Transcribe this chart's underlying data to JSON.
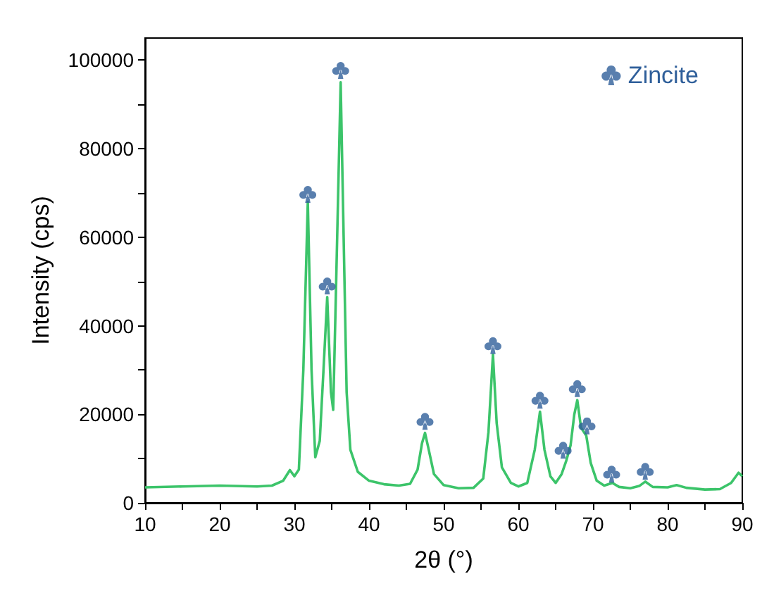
{
  "chart_data": {
    "type": "line",
    "xlabel": "2θ (°)",
    "ylabel": "Intensity (cps)",
    "xlim": [
      10,
      90
    ],
    "ylim": [
      0,
      105000
    ],
    "xticks": [
      10,
      {
        "value": 15,
        "label": null
      },
      20,
      {
        "value": 25,
        "label": null
      },
      30,
      {
        "value": 35,
        "label": null
      },
      40,
      {
        "value": 45,
        "label": null
      },
      50,
      {
        "value": 55,
        "label": null
      },
      60,
      {
        "value": 65,
        "label": null
      },
      70,
      {
        "value": 75,
        "label": null
      },
      80,
      {
        "value": 85,
        "label": null
      },
      90
    ],
    "yticks": [
      0,
      {
        "value": 10000,
        "label": null
      },
      20000,
      {
        "value": 30000,
        "label": null
      },
      40000,
      {
        "value": 50000,
        "label": null
      },
      60000,
      {
        "value": 70000,
        "label": null
      },
      80000,
      {
        "value": 90000,
        "label": null
      },
      100000
    ],
    "legend": "top right",
    "series": [
      {
        "color": "#3cc46a",
        "x": [
          10,
          15,
          20,
          25,
          27,
          28.5,
          29.4,
          30,
          30.6,
          31.2,
          31.8,
          32.3,
          32.8,
          33.4,
          33.9,
          34.4,
          34.9,
          35.2,
          35.6,
          36.2,
          36.6,
          37,
          37.5,
          38.5,
          40,
          42,
          44,
          45.5,
          46.5,
          47.1,
          47.5,
          48,
          48.7,
          50,
          52,
          54,
          55.3,
          56,
          56.6,
          57.1,
          57.8,
          59,
          60,
          61.2,
          62.2,
          62.9,
          63.5,
          64.3,
          65,
          65.8,
          66.4,
          67,
          67.5,
          67.9,
          68.4,
          69.1,
          69.7,
          70.5,
          71.5,
          72.6,
          73.5,
          75,
          76.2,
          77,
          78,
          80,
          81.2,
          82.5,
          85,
          87,
          88.5,
          89.5,
          90
        ],
        "values": [
          3500,
          3700,
          3900,
          3700,
          3900,
          5000,
          7400,
          6000,
          7500,
          30000,
          68000,
          30000,
          10300,
          14000,
          30000,
          46500,
          25000,
          21000,
          50000,
          95000,
          60000,
          25000,
          12000,
          7000,
          5000,
          4200,
          3900,
          4300,
          7500,
          13500,
          15800,
          12000,
          6500,
          4000,
          3300,
          3400,
          5500,
          16000,
          33500,
          18000,
          8000,
          4500,
          3700,
          4500,
          12000,
          20600,
          12000,
          6000,
          4500,
          6500,
          9400,
          13000,
          20000,
          23200,
          17000,
          15200,
          9000,
          5000,
          3900,
          4500,
          3600,
          3300,
          3800,
          4800,
          3600,
          3500,
          4000,
          3400,
          3000,
          3100,
          4500,
          6800,
          6000
        ]
      },
      {
        "type": "scatter",
        "name": "Zincite",
        "color": "#2f5f9a",
        "x": [
          31.8,
          34.4,
          36.2,
          47.5,
          56.6,
          62.9,
          66.0,
          67.9,
          69.2,
          72.5,
          77
        ],
        "values": [
          69700,
          49000,
          97700,
          18400,
          35500,
          23200,
          11900,
          25800,
          17400,
          6500,
          7100
        ]
      }
    ]
  }
}
